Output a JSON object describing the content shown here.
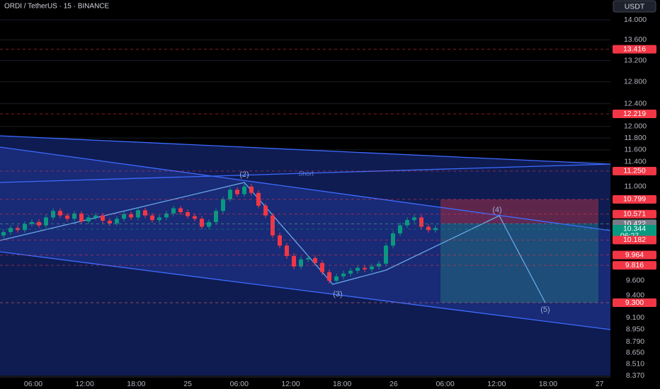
{
  "header": {
    "symbol": "ORDI / TetherUS · 15 · BINANCE",
    "currency": "USDT"
  },
  "price_axis": {
    "scale": "log",
    "ylim": [
      8.37,
      14.0
    ],
    "yticks": [
      {
        "value": 14.0,
        "label": "14.000"
      },
      {
        "value": 13.6,
        "label": "13.600"
      },
      {
        "value": 13.2,
        "label": "13.200"
      },
      {
        "value": 12.8,
        "label": "12.800"
      },
      {
        "value": 12.4,
        "label": "12.400"
      },
      {
        "value": 12.0,
        "label": "12.000"
      },
      {
        "value": 11.8,
        "label": "11.800"
      },
      {
        "value": 11.6,
        "label": "11.600"
      },
      {
        "value": 11.4,
        "label": "11.400"
      },
      {
        "value": 11.0,
        "label": "11.000"
      },
      {
        "value": 9.6,
        "label": "9.600"
      },
      {
        "value": 9.4,
        "label": "9.400"
      },
      {
        "value": 9.1,
        "label": "9.100"
      },
      {
        "value": 8.95,
        "label": "8.950"
      },
      {
        "value": 8.79,
        "label": "8.790"
      },
      {
        "value": 8.65,
        "label": "8.650"
      },
      {
        "value": 8.51,
        "label": "8.510"
      },
      {
        "value": 8.37,
        "label": "8.370"
      }
    ]
  },
  "price_tags": [
    {
      "value": 13.416,
      "label": "13.416",
      "color": "#f23645"
    },
    {
      "value": 12.219,
      "label": "12.219",
      "color": "#f23645"
    },
    {
      "value": 11.25,
      "label": "11.250",
      "color": "#f23645"
    },
    {
      "value": 10.799,
      "label": "10.799",
      "color": "#f23645"
    },
    {
      "value": 10.571,
      "label": "10.571",
      "color": "#f23645"
    },
    {
      "value": 10.424,
      "label": "10.424",
      "color": "#089981"
    },
    {
      "value": 10.422,
      "label": "10.422",
      "color": "#787b86"
    },
    {
      "value": 10.344,
      "label": "10.344",
      "color": "#089981",
      "countdown": "06:27"
    },
    {
      "value": 10.182,
      "label": "10.182",
      "color": "#f23645"
    },
    {
      "value": 9.964,
      "label": "9.964",
      "color": "#f23645"
    },
    {
      "value": 9.816,
      "label": "9.816",
      "color": "#f23645"
    },
    {
      "value": 9.3,
      "label": "9.300",
      "color": "#22ab94"
    },
    {
      "value": 9.3,
      "label": "9.300",
      "color": "#f23645"
    }
  ],
  "time_axis": [
    "06:00",
    "12:00",
    "18:00",
    "25",
    "06:00",
    "12:00",
    "18:00",
    "26",
    "06:00",
    "12:00",
    "18:00",
    "27"
  ],
  "annotations": {
    "wave2": "(2)",
    "short": "Short",
    "wave3": "(3)",
    "wave4": "(4)",
    "wave5": "(5)"
  },
  "candles": [
    [
      10.25,
      10.34,
      10.21,
      10.3
    ],
    [
      10.3,
      10.4,
      10.26,
      10.36
    ],
    [
      10.36,
      10.4,
      10.29,
      10.33
    ],
    [
      10.33,
      10.46,
      10.29,
      10.42
    ],
    [
      10.42,
      10.49,
      10.38,
      10.45
    ],
    [
      10.45,
      10.49,
      10.36,
      10.4
    ],
    [
      10.4,
      10.56,
      10.36,
      10.52
    ],
    [
      10.52,
      10.66,
      10.48,
      10.62
    ],
    [
      10.62,
      10.66,
      10.51,
      10.55
    ],
    [
      10.55,
      10.59,
      10.46,
      10.5
    ],
    [
      10.5,
      10.62,
      10.46,
      10.58
    ],
    [
      10.58,
      10.62,
      10.42,
      10.46
    ],
    [
      10.46,
      10.56,
      10.42,
      10.52
    ],
    [
      10.52,
      10.59,
      10.48,
      10.55
    ],
    [
      10.55,
      10.59,
      10.43,
      10.47
    ],
    [
      10.47,
      10.51,
      10.39,
      10.43
    ],
    [
      10.43,
      10.54,
      10.39,
      10.5
    ],
    [
      10.5,
      10.61,
      10.46,
      10.57
    ],
    [
      10.57,
      10.61,
      10.48,
      10.52
    ],
    [
      10.52,
      10.67,
      10.48,
      10.63
    ],
    [
      10.63,
      10.67,
      10.51,
      10.55
    ],
    [
      10.55,
      10.59,
      10.44,
      10.48
    ],
    [
      10.48,
      10.56,
      10.44,
      10.52
    ],
    [
      10.52,
      10.62,
      10.48,
      10.58
    ],
    [
      10.58,
      10.7,
      10.54,
      10.66
    ],
    [
      10.66,
      10.7,
      10.56,
      10.6
    ],
    [
      10.6,
      10.64,
      10.5,
      10.54
    ],
    [
      10.54,
      10.58,
      10.46,
      10.5
    ],
    [
      10.5,
      10.54,
      10.34,
      10.38
    ],
    [
      10.38,
      10.49,
      10.34,
      10.45
    ],
    [
      10.45,
      10.66,
      10.41,
      10.62
    ],
    [
      10.62,
      10.84,
      10.58,
      10.8
    ],
    [
      10.8,
      10.99,
      10.76,
      10.95
    ],
    [
      10.95,
      10.99,
      10.84,
      10.88
    ],
    [
      10.88,
      11.05,
      10.84,
      11.0
    ],
    [
      11.0,
      11.04,
      10.86,
      10.9
    ],
    [
      10.9,
      10.94,
      10.66,
      10.7
    ],
    [
      10.7,
      10.74,
      10.51,
      10.55
    ],
    [
      10.55,
      10.59,
      10.21,
      10.25
    ],
    [
      10.25,
      10.29,
      10.06,
      10.1
    ],
    [
      10.1,
      10.14,
      9.91,
      9.95
    ],
    [
      9.95,
      9.99,
      9.76,
      9.8
    ],
    [
      9.8,
      9.94,
      9.76,
      9.9
    ],
    [
      9.9,
      9.96,
      9.86,
      9.92
    ],
    [
      9.92,
      9.96,
      9.81,
      9.85
    ],
    [
      9.85,
      9.89,
      9.68,
      9.72
    ],
    [
      9.72,
      9.76,
      9.56,
      9.6
    ],
    [
      9.6,
      9.7,
      9.56,
      9.66
    ],
    [
      9.66,
      9.74,
      9.62,
      9.7
    ],
    [
      9.7,
      9.78,
      9.66,
      9.74
    ],
    [
      9.74,
      9.82,
      9.7,
      9.78
    ],
    [
      9.78,
      9.82,
      9.72,
      9.76
    ],
    [
      9.76,
      9.84,
      9.72,
      9.8
    ],
    [
      9.8,
      9.88,
      9.76,
      9.84
    ],
    [
      9.84,
      10.14,
      9.8,
      10.1
    ],
    [
      10.1,
      10.32,
      10.06,
      10.28
    ],
    [
      10.28,
      10.44,
      10.24,
      10.4
    ],
    [
      10.4,
      10.52,
      10.36,
      10.48
    ],
    [
      10.48,
      10.56,
      10.44,
      10.52
    ],
    [
      10.52,
      10.56,
      10.34,
      10.38
    ],
    [
      10.38,
      10.42,
      10.29,
      10.33
    ],
    [
      10.33,
      10.4,
      10.29,
      10.36
    ]
  ],
  "up_color": "#089981",
  "down_color": "#f23645"
}
